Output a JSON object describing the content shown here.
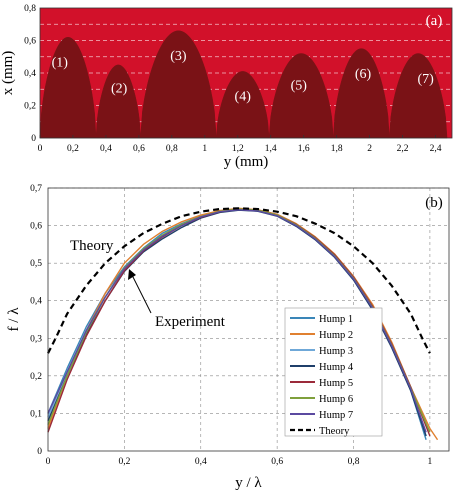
{
  "chart_data": [
    {
      "type": "area",
      "panel_label": "(a)",
      "xlabel": "y (mm)",
      "ylabel": "x (mm)",
      "xlim": [
        0,
        2.5
      ],
      "ylim": [
        0,
        0.8
      ],
      "xticks": [
        "0",
        "0,2",
        "0,4",
        "0,6",
        "0,8",
        "1",
        "1,2",
        "1,4",
        "1,6",
        "1,8",
        "2",
        "2,2",
        "2,4"
      ],
      "yticks": [
        "0",
        "0,2",
        "0,4",
        "0,6",
        "0,8"
      ],
      "background_color": "#d2112a",
      "fill_color": "#7a1216",
      "humps": [
        {
          "label": "(1)",
          "start": 0.0,
          "end": 0.34,
          "peak": 0.62,
          "label_x": 0.12,
          "label_y": 0.44
        },
        {
          "label": "(2)",
          "start": 0.34,
          "end": 0.61,
          "peak": 0.45,
          "label_x": 0.48,
          "label_y": 0.28
        },
        {
          "label": "(3)",
          "start": 0.61,
          "end": 1.07,
          "peak": 0.66,
          "label_x": 0.84,
          "label_y": 0.48
        },
        {
          "label": "(4)",
          "start": 1.07,
          "end": 1.39,
          "peak": 0.41,
          "label_x": 1.23,
          "label_y": 0.23
        },
        {
          "label": "(5)",
          "start": 1.39,
          "end": 1.78,
          "peak": 0.52,
          "label_x": 1.57,
          "label_y": 0.3
        },
        {
          "label": "(6)",
          "start": 1.78,
          "end": 2.12,
          "peak": 0.55,
          "label_x": 1.96,
          "label_y": 0.37
        },
        {
          "label": "(7)",
          "start": 2.12,
          "end": 2.47,
          "peak": 0.52,
          "label_x": 2.34,
          "label_y": 0.34
        }
      ]
    },
    {
      "type": "line",
      "panel_label": "(b)",
      "xlabel": "y / λ",
      "ylabel": "f / λ",
      "xlim": [
        0,
        1.05
      ],
      "ylim": [
        0,
        0.7
      ],
      "xticks": [
        "0",
        "0,2",
        "0,4",
        "0,6",
        "0,8",
        "1"
      ],
      "yticks": [
        "0",
        "0,1",
        "0,2",
        "0,3",
        "0,4",
        "0,5",
        "0,6",
        "0,7"
      ],
      "grid": true,
      "legend_position": "bottom-right",
      "annotations": [
        "Theory",
        "Experiment"
      ],
      "series": [
        {
          "name": "Hump 1",
          "color": "#3a86b8",
          "values": [
            [
              0.0,
              0.1
            ],
            [
              0.05,
              0.22
            ],
            [
              0.1,
              0.33
            ],
            [
              0.15,
              0.42
            ],
            [
              0.2,
              0.49
            ],
            [
              0.25,
              0.54
            ],
            [
              0.3,
              0.58
            ],
            [
              0.35,
              0.605
            ],
            [
              0.4,
              0.625
            ],
            [
              0.45,
              0.638
            ],
            [
              0.5,
              0.643
            ],
            [
              0.55,
              0.64
            ],
            [
              0.6,
              0.628
            ],
            [
              0.65,
              0.6
            ],
            [
              0.7,
              0.565
            ],
            [
              0.75,
              0.52
            ],
            [
              0.8,
              0.46
            ],
            [
              0.85,
              0.38
            ],
            [
              0.9,
              0.28
            ],
            [
              0.95,
              0.16
            ],
            [
              0.99,
              0.03
            ]
          ]
        },
        {
          "name": "Hump 2",
          "color": "#e08030",
          "values": [
            [
              0.0,
              0.06
            ],
            [
              0.05,
              0.2
            ],
            [
              0.1,
              0.32
            ],
            [
              0.15,
              0.42
            ],
            [
              0.2,
              0.5
            ],
            [
              0.25,
              0.55
            ],
            [
              0.3,
              0.585
            ],
            [
              0.35,
              0.61
            ],
            [
              0.4,
              0.628
            ],
            [
              0.45,
              0.64
            ],
            [
              0.5,
              0.646
            ],
            [
              0.55,
              0.642
            ],
            [
              0.6,
              0.63
            ],
            [
              0.65,
              0.605
            ],
            [
              0.7,
              0.57
            ],
            [
              0.75,
              0.525
            ],
            [
              0.8,
              0.465
            ],
            [
              0.85,
              0.39
            ],
            [
              0.9,
              0.29
            ],
            [
              0.95,
              0.17
            ],
            [
              1.0,
              0.06
            ],
            [
              1.02,
              0.03
            ]
          ]
        },
        {
          "name": "Hump 3",
          "color": "#6fa8d8",
          "values": [
            [
              0.0,
              0.09
            ],
            [
              0.05,
              0.21
            ],
            [
              0.1,
              0.32
            ],
            [
              0.15,
              0.41
            ],
            [
              0.2,
              0.485
            ],
            [
              0.25,
              0.535
            ],
            [
              0.3,
              0.57
            ],
            [
              0.35,
              0.6
            ],
            [
              0.4,
              0.623
            ],
            [
              0.45,
              0.637
            ],
            [
              0.5,
              0.642
            ],
            [
              0.55,
              0.639
            ],
            [
              0.6,
              0.626
            ],
            [
              0.65,
              0.6
            ],
            [
              0.7,
              0.563
            ],
            [
              0.75,
              0.518
            ],
            [
              0.8,
              0.458
            ],
            [
              0.85,
              0.38
            ],
            [
              0.9,
              0.28
            ],
            [
              0.95,
              0.165
            ],
            [
              0.99,
              0.04
            ]
          ]
        },
        {
          "name": "Hump 4",
          "color": "#1f3f6a",
          "values": [
            [
              0.0,
              0.08
            ],
            [
              0.05,
              0.2
            ],
            [
              0.1,
              0.31
            ],
            [
              0.15,
              0.4
            ],
            [
              0.2,
              0.478
            ],
            [
              0.25,
              0.53
            ],
            [
              0.3,
              0.565
            ],
            [
              0.35,
              0.595
            ],
            [
              0.4,
              0.62
            ],
            [
              0.45,
              0.635
            ],
            [
              0.5,
              0.641
            ],
            [
              0.55,
              0.638
            ],
            [
              0.6,
              0.625
            ],
            [
              0.65,
              0.598
            ],
            [
              0.7,
              0.562
            ],
            [
              0.75,
              0.516
            ],
            [
              0.8,
              0.455
            ],
            [
              0.85,
              0.375
            ],
            [
              0.9,
              0.275
            ],
            [
              0.95,
              0.16
            ],
            [
              0.99,
              0.04
            ]
          ]
        },
        {
          "name": "Hump 5",
          "color": "#9b2a3a",
          "values": [
            [
              0.0,
              0.05
            ],
            [
              0.05,
              0.19
            ],
            [
              0.1,
              0.305
            ],
            [
              0.15,
              0.4
            ],
            [
              0.2,
              0.48
            ],
            [
              0.25,
              0.533
            ],
            [
              0.3,
              0.57
            ],
            [
              0.35,
              0.6
            ],
            [
              0.4,
              0.622
            ],
            [
              0.45,
              0.637
            ],
            [
              0.5,
              0.643
            ],
            [
              0.55,
              0.64
            ],
            [
              0.6,
              0.628
            ],
            [
              0.65,
              0.603
            ],
            [
              0.7,
              0.568
            ],
            [
              0.75,
              0.523
            ],
            [
              0.8,
              0.463
            ],
            [
              0.85,
              0.385
            ],
            [
              0.9,
              0.285
            ],
            [
              0.95,
              0.17
            ],
            [
              1.0,
              0.04
            ]
          ]
        },
        {
          "name": "Hump 6",
          "color": "#7fa03c",
          "values": [
            [
              0.0,
              0.07
            ],
            [
              0.05,
              0.2
            ],
            [
              0.1,
              0.315
            ],
            [
              0.15,
              0.41
            ],
            [
              0.2,
              0.487
            ],
            [
              0.25,
              0.538
            ],
            [
              0.3,
              0.575
            ],
            [
              0.35,
              0.603
            ],
            [
              0.4,
              0.624
            ],
            [
              0.45,
              0.638
            ],
            [
              0.5,
              0.644
            ],
            [
              0.55,
              0.641
            ],
            [
              0.6,
              0.628
            ],
            [
              0.65,
              0.602
            ],
            [
              0.7,
              0.566
            ],
            [
              0.75,
              0.52
            ],
            [
              0.8,
              0.46
            ],
            [
              0.85,
              0.382
            ],
            [
              0.9,
              0.282
            ],
            [
              0.95,
              0.167
            ],
            [
              1.0,
              0.05
            ]
          ]
        },
        {
          "name": "Hump 7",
          "color": "#5b4aa0",
          "values": [
            [
              0.0,
              0.1
            ],
            [
              0.05,
              0.21
            ],
            [
              0.1,
              0.32
            ],
            [
              0.15,
              0.41
            ],
            [
              0.2,
              0.485
            ],
            [
              0.25,
              0.535
            ],
            [
              0.3,
              0.572
            ],
            [
              0.35,
              0.6
            ],
            [
              0.4,
              0.623
            ],
            [
              0.45,
              0.637
            ],
            [
              0.5,
              0.642
            ],
            [
              0.55,
              0.639
            ],
            [
              0.6,
              0.626
            ],
            [
              0.65,
              0.6
            ],
            [
              0.7,
              0.564
            ],
            [
              0.75,
              0.518
            ],
            [
              0.8,
              0.458
            ],
            [
              0.85,
              0.38
            ],
            [
              0.9,
              0.28
            ],
            [
              0.95,
              0.165
            ],
            [
              0.99,
              0.05
            ]
          ]
        },
        {
          "name": "Theory",
          "color": "#000000",
          "dashed": true,
          "values": [
            [
              0.0,
              0.26
            ],
            [
              0.02,
              0.3
            ],
            [
              0.05,
              0.365
            ],
            [
              0.1,
              0.44
            ],
            [
              0.15,
              0.5
            ],
            [
              0.2,
              0.545
            ],
            [
              0.25,
              0.58
            ],
            [
              0.3,
              0.605
            ],
            [
              0.35,
              0.625
            ],
            [
              0.4,
              0.637
            ],
            [
              0.45,
              0.644
            ],
            [
              0.5,
              0.646
            ],
            [
              0.55,
              0.644
            ],
            [
              0.6,
              0.637
            ],
            [
              0.65,
              0.625
            ],
            [
              0.7,
              0.605
            ],
            [
              0.75,
              0.58
            ],
            [
              0.8,
              0.545
            ],
            [
              0.85,
              0.5
            ],
            [
              0.9,
              0.44
            ],
            [
              0.95,
              0.365
            ],
            [
              0.98,
              0.3
            ],
            [
              1.0,
              0.26
            ]
          ]
        }
      ]
    }
  ]
}
